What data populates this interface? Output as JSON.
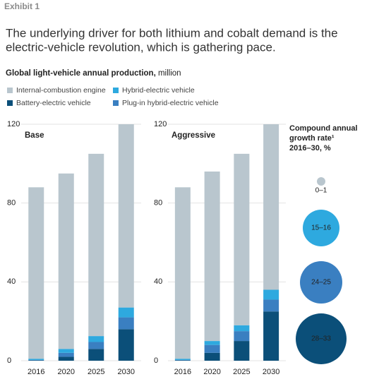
{
  "exhibit": "Exhibit 1",
  "title": [
    "The underlying driver for both lithium and cobalt demand is the",
    "electric-vehicle revolution, which is gathering pace."
  ],
  "subtitle": "Global light-vehicle annual production,",
  "subtitle_unit": "million",
  "chart_data": [
    {
      "type": "bar",
      "stacked": true,
      "title": "Base",
      "categories": [
        "2016",
        "2020",
        "2025",
        "2030"
      ],
      "series": [
        {
          "name": "Battery-electric vehicle",
          "color": "#0b4f79",
          "values": [
            0.2,
            2,
            6,
            16
          ]
        },
        {
          "name": "Plug-in hybrid-electric vehicle",
          "color": "#3a7fc1",
          "values": [
            0.2,
            2,
            3.5,
            6
          ]
        },
        {
          "name": "Hybrid-electric vehicle",
          "color": "#2ea9df",
          "values": [
            0.6,
            2,
            3,
            5
          ]
        },
        {
          "name": "Internal-combustion engine",
          "color": "#b9c6ce",
          "values": [
            87,
            89,
            92.5,
            93
          ]
        }
      ],
      "ylim": [
        0,
        120
      ],
      "yticks": [
        0,
        40,
        80,
        120
      ],
      "grid": true
    },
    {
      "type": "bar",
      "stacked": true,
      "title": "Aggressive",
      "categories": [
        "2016",
        "2020",
        "2025",
        "2030"
      ],
      "series": [
        {
          "name": "Battery-electric vehicle",
          "color": "#0b4f79",
          "values": [
            0.2,
            4,
            10,
            25
          ]
        },
        {
          "name": "Plug-in hybrid-electric vehicle",
          "color": "#3a7fc1",
          "values": [
            0.2,
            4,
            5,
            6
          ]
        },
        {
          "name": "Hybrid-electric vehicle",
          "color": "#2ea9df",
          "values": [
            0.6,
            2,
            3,
            5
          ]
        },
        {
          "name": "Internal-combustion engine",
          "color": "#b9c6ce",
          "values": [
            87,
            86,
            87,
            84
          ]
        }
      ],
      "ylim": [
        0,
        120
      ],
      "yticks": [
        0,
        40,
        80,
        120
      ],
      "grid": true
    }
  ],
  "growth_legend": {
    "title": [
      "Compound annual",
      "growth rate¹",
      "2016–30, %"
    ],
    "items": [
      {
        "label": "0–1",
        "color": "#b9c6ce"
      },
      {
        "label": "15–16",
        "color": "#2ea9df"
      },
      {
        "label": "24–25",
        "color": "#3a7fc1"
      },
      {
        "label": "28–33",
        "color": "#0b4f79"
      }
    ]
  }
}
